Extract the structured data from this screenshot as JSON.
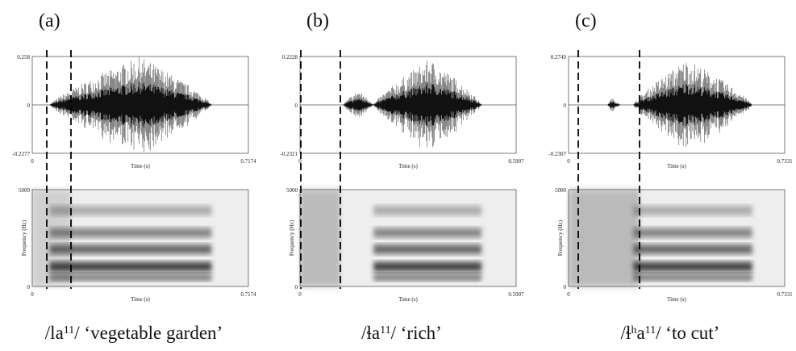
{
  "panels": [
    {
      "label": "(a)",
      "waveform": {
        "y_top": "0.258",
        "y_mid": "0",
        "y_bottom": "-0.2277",
        "x_start": "0",
        "x_label": "Time (s)",
        "x_end": "0.7174"
      },
      "spectrogram": {
        "y_top": "5000",
        "y_bottom": "0",
        "y_label": "Frequency (Hz)",
        "x_start": "0",
        "x_label": "Time (s)",
        "x_end": "0.7174"
      },
      "caption": [
        {
          "text": "/la"
        },
        {
          "text": "11",
          "sup": true
        },
        {
          "text": "/ ‘vegetable garden’"
        }
      ]
    },
    {
      "label": "(b)",
      "waveform": {
        "y_top": "0.2228",
        "y_mid": "0",
        "y_bottom": "-0.2321",
        "x_start": "0",
        "x_label": "Time (s)",
        "x_end": "0.5907"
      },
      "spectrogram": {
        "y_top": "5000",
        "y_bottom": "0",
        "y_label": "Frequency (Hz)",
        "x_start": "0",
        "x_label": "Time (s)",
        "x_end": "0.5907"
      },
      "caption": [
        {
          "text": "/ɬa"
        },
        {
          "text": "11",
          "sup": true
        },
        {
          "text": "/ ‘rich’"
        }
      ]
    },
    {
      "label": "(c)",
      "waveform": {
        "y_top": "0.2749",
        "y_mid": "0",
        "y_bottom": "-0.2307",
        "x_start": "0",
        "x_label": "Time (s)",
        "x_end": "0.7331"
      },
      "spectrogram": {
        "y_top": "5000",
        "y_bottom": "0",
        "y_label": "Frequency (Hz)",
        "x_start": "0",
        "x_label": "Time (s)",
        "x_end": "0.7331"
      },
      "caption": [
        {
          "text": "/ɬ"
        },
        {
          "text": "h",
          "sup": true
        },
        {
          "text": "a"
        },
        {
          "text": "11",
          "sup": true
        },
        {
          "text": "/ ‘to cut’"
        }
      ]
    }
  ]
}
